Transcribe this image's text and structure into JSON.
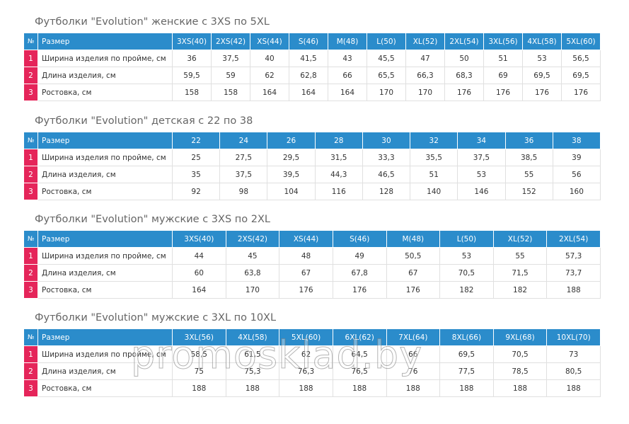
{
  "watermark": "promosklad.by",
  "tables": [
    {
      "title": "Футболки \"Evolution\" женские с 3XS по 5XL",
      "header": [
        "№",
        "Размер",
        "3XS(40)",
        "2XS(42)",
        "XS(44)",
        "S(46)",
        "M(48)",
        "L(50)",
        "XL(52)",
        "2XL(54)",
        "3XL(56)",
        "4XL(58)",
        "5XL(60)"
      ],
      "rows": [
        [
          "1",
          "Ширина изделия по пройме, см",
          "36",
          "37,5",
          "40",
          "41,5",
          "43",
          "45,5",
          "47",
          "50",
          "51",
          "53",
          "56,5"
        ],
        [
          "2",
          "Длина изделия, см",
          "59,5",
          "59",
          "62",
          "62,8",
          "66",
          "65,5",
          "66,3",
          "68,3",
          "69",
          "69,5",
          "69,5"
        ],
        [
          "3",
          "Ростовка, см",
          "158",
          "158",
          "164",
          "164",
          "164",
          "170",
          "170",
          "176",
          "176",
          "176",
          "176"
        ]
      ]
    },
    {
      "title": "Футболки \"Evolution\" детская с 22 по 38",
      "header": [
        "№",
        "Размер",
        "22",
        "24",
        "26",
        "28",
        "30",
        "32",
        "34",
        "36",
        "38"
      ],
      "rows": [
        [
          "1",
          "Ширина изделия по пройме, см",
          "25",
          "27,5",
          "29,5",
          "31,5",
          "33,3",
          "35,5",
          "37,5",
          "38,5",
          "39"
        ],
        [
          "2",
          "Длина изделия, см",
          "35",
          "37,5",
          "39,5",
          "44,3",
          "46,5",
          "51",
          "53",
          "55",
          "56"
        ],
        [
          "3",
          "Ростовка, см",
          "92",
          "98",
          "104",
          "116",
          "128",
          "140",
          "146",
          "152",
          "160"
        ]
      ]
    },
    {
      "title": "Футболки \"Evolution\" мужские с 3XS по 2XL",
      "header": [
        "№",
        "Размер",
        "3XS(40)",
        "2XS(42)",
        "XS(44)",
        "S(46)",
        "M(48)",
        "L(50)",
        "XL(52)",
        "2XL(54)"
      ],
      "rows": [
        [
          "1",
          "Ширина изделия по пройме, см",
          "44",
          "45",
          "48",
          "49",
          "50,5",
          "53",
          "55",
          "57,3"
        ],
        [
          "2",
          "Длина изделия, см",
          "60",
          "63,8",
          "67",
          "67,8",
          "67",
          "70,5",
          "71,5",
          "73,7"
        ],
        [
          "3",
          "Ростовка, см",
          "164",
          "170",
          "176",
          "176",
          "176",
          "182",
          "182",
          "188"
        ]
      ]
    },
    {
      "title": "Футболки \"Evolution\" мужские с 3XL по 10XL",
      "header": [
        "№",
        "Размер",
        "3XL(56)",
        "4XL(58)",
        "5XL(60)",
        "6XL(62)",
        "7XL(64)",
        "8XL(66)",
        "9XL(68)",
        "10XL(70)"
      ],
      "rows": [
        [
          "1",
          "Ширина изделия по пройме, см",
          "58,5",
          "61,5",
          "62",
          "64,5",
          "66",
          "69,5",
          "70,5",
          "73"
        ],
        [
          "2",
          "Длина изделия, см",
          "75",
          "75,3",
          "76,3",
          "76,5",
          "76",
          "77,5",
          "78,5",
          "80,5"
        ],
        [
          "3",
          "Ростовка, см",
          "188",
          "188",
          "188",
          "188",
          "188",
          "188",
          "188",
          "188"
        ]
      ]
    }
  ]
}
